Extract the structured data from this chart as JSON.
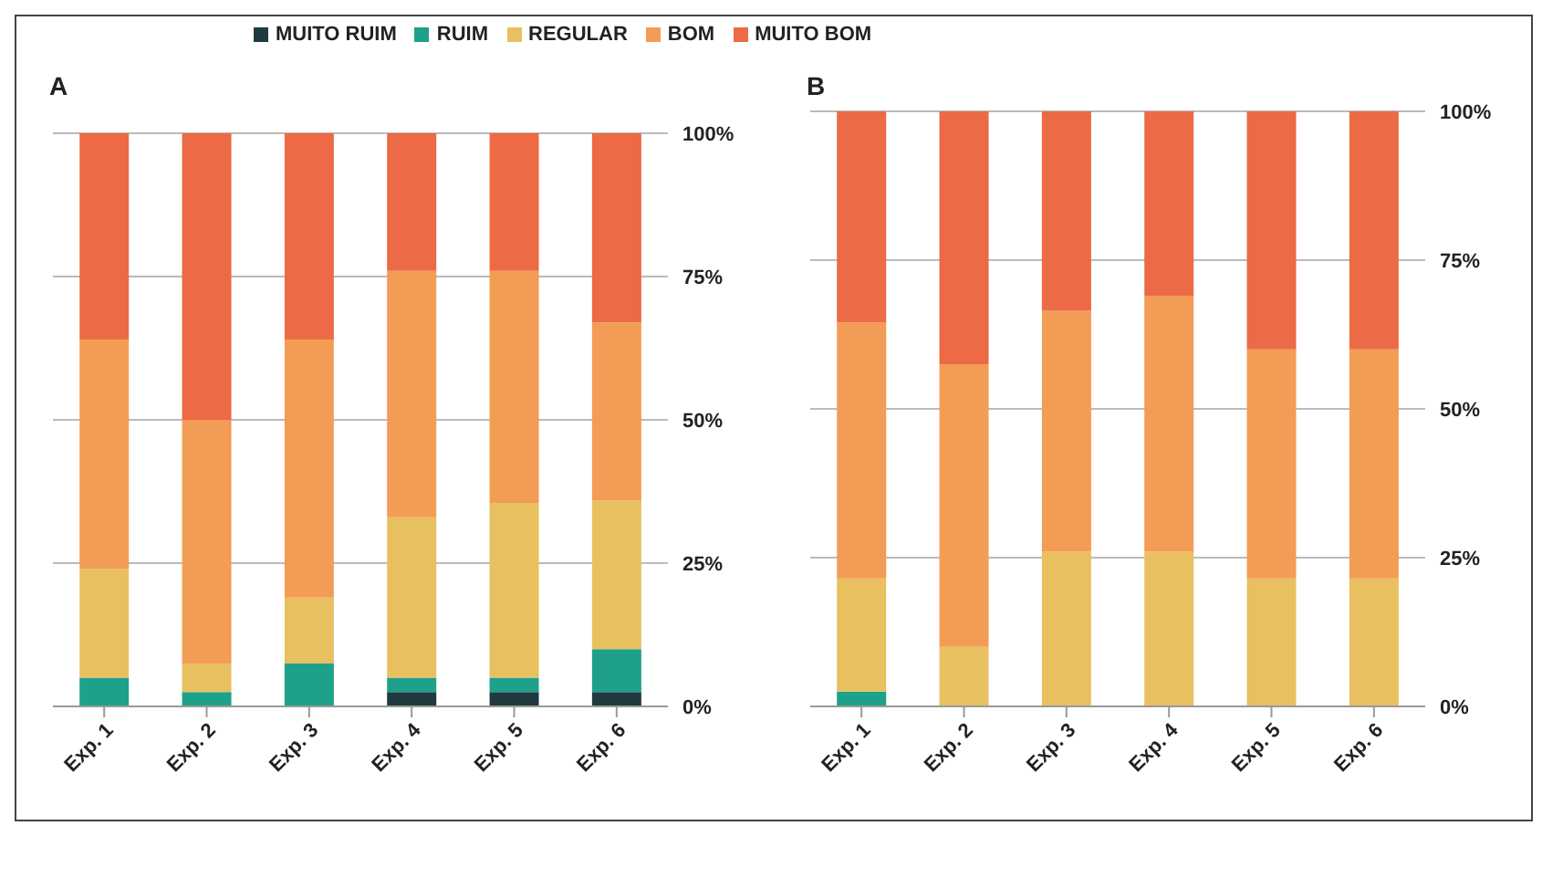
{
  "chart_data": [
    {
      "type": "bar",
      "title": "A",
      "stacked": true,
      "categories": [
        "Exp. 1",
        "Exp. 2",
        "Exp. 3",
        "Exp. 4",
        "Exp. 5",
        "Exp. 6"
      ],
      "series": [
        {
          "name": "MUITO RUIM",
          "color": "#1f3b3f",
          "values": [
            0,
            0,
            0,
            2.5,
            2.5,
            2.5
          ]
        },
        {
          "name": "RUIM",
          "color": "#1fa08a",
          "values": [
            5,
            2.5,
            7.5,
            2.5,
            2.5,
            7.5
          ]
        },
        {
          "name": "REGULAR",
          "color": "#e8c060",
          "values": [
            19,
            5,
            11.5,
            28,
            30.5,
            26
          ]
        },
        {
          "name": "BOM",
          "color": "#f39c55",
          "values": [
            40,
            42.5,
            45,
            43,
            40.5,
            31
          ]
        },
        {
          "name": "MUITO BOM",
          "color": "#ec6a45",
          "values": [
            36,
            50,
            36,
            24,
            24,
            33
          ]
        }
      ],
      "ylim": [
        0,
        100
      ],
      "yticks": [
        {
          "value": 0,
          "label": "0%"
        },
        {
          "value": 25,
          "label": "25%"
        },
        {
          "value": 50,
          "label": "50%"
        },
        {
          "value": 75,
          "label": "75%"
        },
        {
          "value": 100,
          "label": "100%"
        }
      ],
      "grid": "y",
      "legend": "top"
    },
    {
      "type": "bar",
      "title": "B",
      "stacked": true,
      "categories": [
        "Exp. 1",
        "Exp. 2",
        "Exp. 3",
        "Exp. 4",
        "Exp. 5",
        "Exp. 6"
      ],
      "series": [
        {
          "color": "#1fa08a",
          "values": [
            2.5,
            0,
            0,
            0,
            0,
            0
          ]
        },
        {
          "color": "#e8c060",
          "values": [
            19,
            10,
            26,
            26,
            21.5,
            21.5
          ]
        },
        {
          "color": "#f39c55",
          "values": [
            43,
            47.5,
            40.5,
            43,
            38.5,
            38.5
          ]
        },
        {
          "color": "#ec6a45",
          "values": [
            35.5,
            42.5,
            33.5,
            31,
            40,
            40
          ]
        }
      ],
      "ylim": [
        0,
        100
      ],
      "yticks": [
        {
          "value": 0,
          "label": "0%"
        },
        {
          "value": 25,
          "label": "25%"
        },
        {
          "value": 50,
          "label": "50%"
        },
        {
          "value": 75,
          "label": "75%"
        },
        {
          "value": 100,
          "label": "100%"
        }
      ],
      "grid": "y"
    }
  ]
}
